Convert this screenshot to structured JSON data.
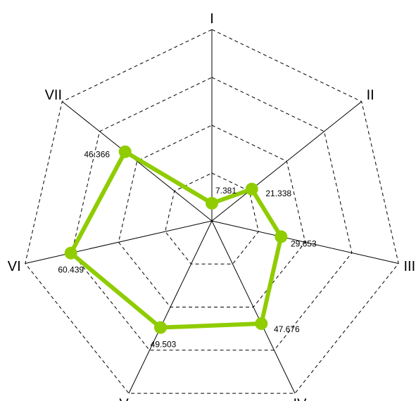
{
  "chart_data": {
    "type": "radar",
    "axes": [
      "I",
      "II",
      "III",
      "IV",
      "V",
      "VI",
      "VII"
    ],
    "series": [
      {
        "values": [
          7.381,
          21.338,
          29.653,
          47.676,
          49.503,
          60.439,
          46.366
        ],
        "value_labels": [
          "7.381",
          "21.338",
          "29.653",
          "47.676",
          "49.503",
          "60.439",
          "46.366"
        ],
        "color": "#8fcc00"
      }
    ],
    "range": [
      0,
      80
    ],
    "grid_levels": [
      20,
      40,
      60,
      80
    ],
    "grid_style": "dashed",
    "legend": "none"
  }
}
